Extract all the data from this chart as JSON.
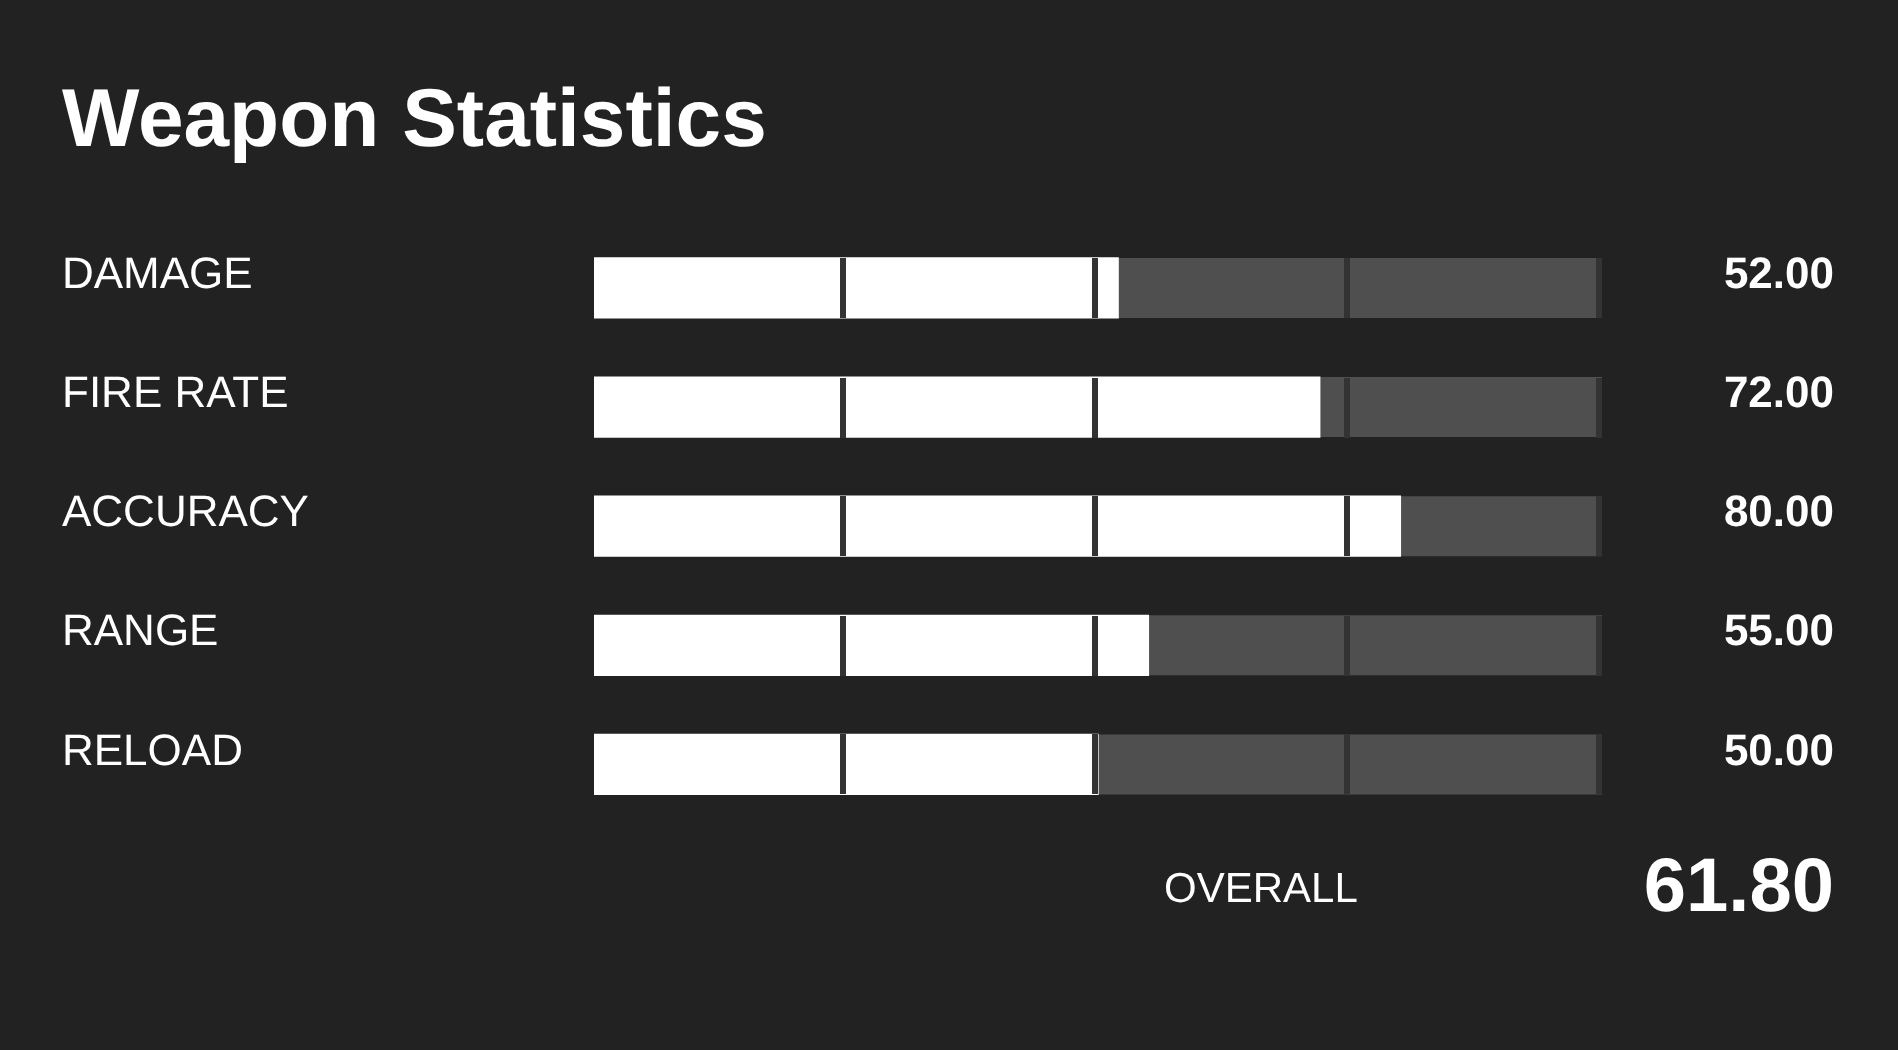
{
  "chart_data": {
    "type": "bar",
    "title": "Weapon Statistics",
    "orientation": "horizontal",
    "categories": [
      "DAMAGE",
      "FIRE RATE",
      "ACCURACY",
      "RANGE",
      "RELOAD"
    ],
    "values": [
      52,
      72,
      80,
      55,
      50
    ],
    "color": "#ffffff",
    "value_labels": [
      "52.00",
      "72.00",
      "80.00",
      "55.00",
      "50.00"
    ],
    "xlim": [
      0,
      100
    ],
    "tick_labels": "y",
    "annotations": [
      "OVERALL",
      "61.80"
    ]
  }
}
